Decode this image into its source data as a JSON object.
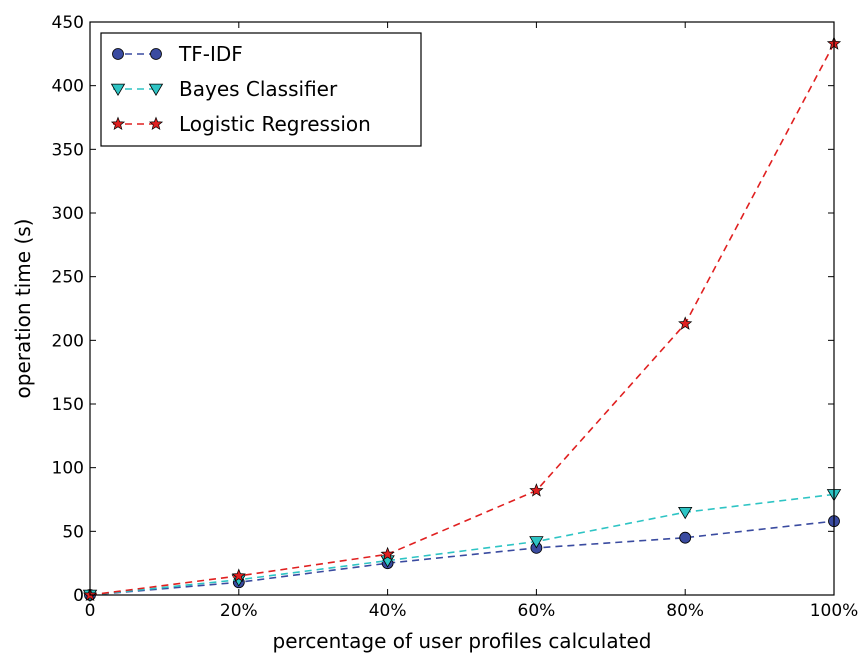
{
  "chart_data": {
    "type": "line",
    "x_categories": [
      "0",
      "20%",
      "40%",
      "60%",
      "80%",
      "100%"
    ],
    "x_values": [
      0,
      20,
      40,
      60,
      80,
      100
    ],
    "xlabel": "percentage of user profiles calculated",
    "ylabel": "operation time (s)",
    "xlim": [
      0,
      100
    ],
    "ylim": [
      0,
      450
    ],
    "y_ticks": [
      0,
      50,
      100,
      150,
      200,
      250,
      300,
      350,
      400,
      450
    ],
    "grid": false,
    "legend_position": "top-left",
    "series": [
      {
        "name": "TF-IDF",
        "values": [
          0,
          10,
          25,
          37,
          45,
          58
        ],
        "color": "#3a4ba0",
        "marker": "circle",
        "line_style": "dashed"
      },
      {
        "name": "Bayes Classifier",
        "values": [
          0,
          12,
          27,
          42,
          65,
          79
        ],
        "color": "#2ec4c4",
        "marker": "triangle-down",
        "line_style": "dashed"
      },
      {
        "name": "Logistic Regression",
        "values": [
          0,
          15,
          32,
          82,
          213,
          433
        ],
        "color": "#e02020",
        "marker": "star",
        "line_style": "dashed"
      }
    ]
  }
}
